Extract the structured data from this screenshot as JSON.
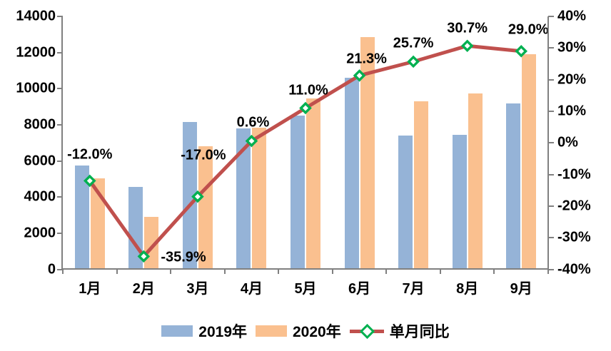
{
  "chart_data": {
    "type": "bar",
    "subtype": "combo-bar-line-dual-axis",
    "title": "",
    "categories": [
      "1月",
      "2月",
      "3月",
      "4月",
      "5月",
      "6月",
      "7月",
      "8月",
      "9月"
    ],
    "series": [
      {
        "name": "2019年",
        "type": "bar",
        "axis": "left",
        "color": "#95B3D7",
        "values": [
          5750,
          4550,
          8150,
          7800,
          8500,
          10600,
          7400,
          7450,
          9200
        ]
      },
      {
        "name": "2020年",
        "type": "bar",
        "axis": "left",
        "color": "#FAC08F",
        "values": [
          5050,
          2900,
          6800,
          7850,
          9450,
          12850,
          9300,
          9750,
          11900
        ]
      },
      {
        "name": "单月同比",
        "type": "line",
        "axis": "right",
        "color": "#C0504D",
        "marker": "diamond",
        "marker_color": "#00B050",
        "marker_fill": "#FFFFFF",
        "values": [
          -12.0,
          -35.9,
          -17.0,
          0.6,
          11.0,
          21.3,
          25.7,
          30.7,
          29.0
        ],
        "point_labels": [
          "-12.0%",
          "-35.9%",
          "-17.0%",
          "0.6%",
          "11.0%",
          "21.3%",
          "25.7%",
          "30.7%",
          "29.0%"
        ]
      }
    ],
    "left_axis": {
      "min": 0,
      "max": 14000,
      "step": 2000,
      "tick_labels": [
        "14000",
        "12000",
        "10000",
        "8000",
        "6000",
        "4000",
        "2000",
        "0"
      ]
    },
    "right_axis": {
      "min": -40,
      "max": 40,
      "step": 10,
      "tick_labels": [
        "40%",
        "30%",
        "20%",
        "10%",
        "0%",
        "-10%",
        "-20%",
        "-30%",
        "-40%"
      ]
    },
    "xlabel": "",
    "ylabel": "",
    "grid": false,
    "legend_position": "bottom",
    "legend": [
      "2019年",
      "2020年",
      "单月同比"
    ],
    "axis_color": "#808080",
    "text_color": "#000000"
  }
}
